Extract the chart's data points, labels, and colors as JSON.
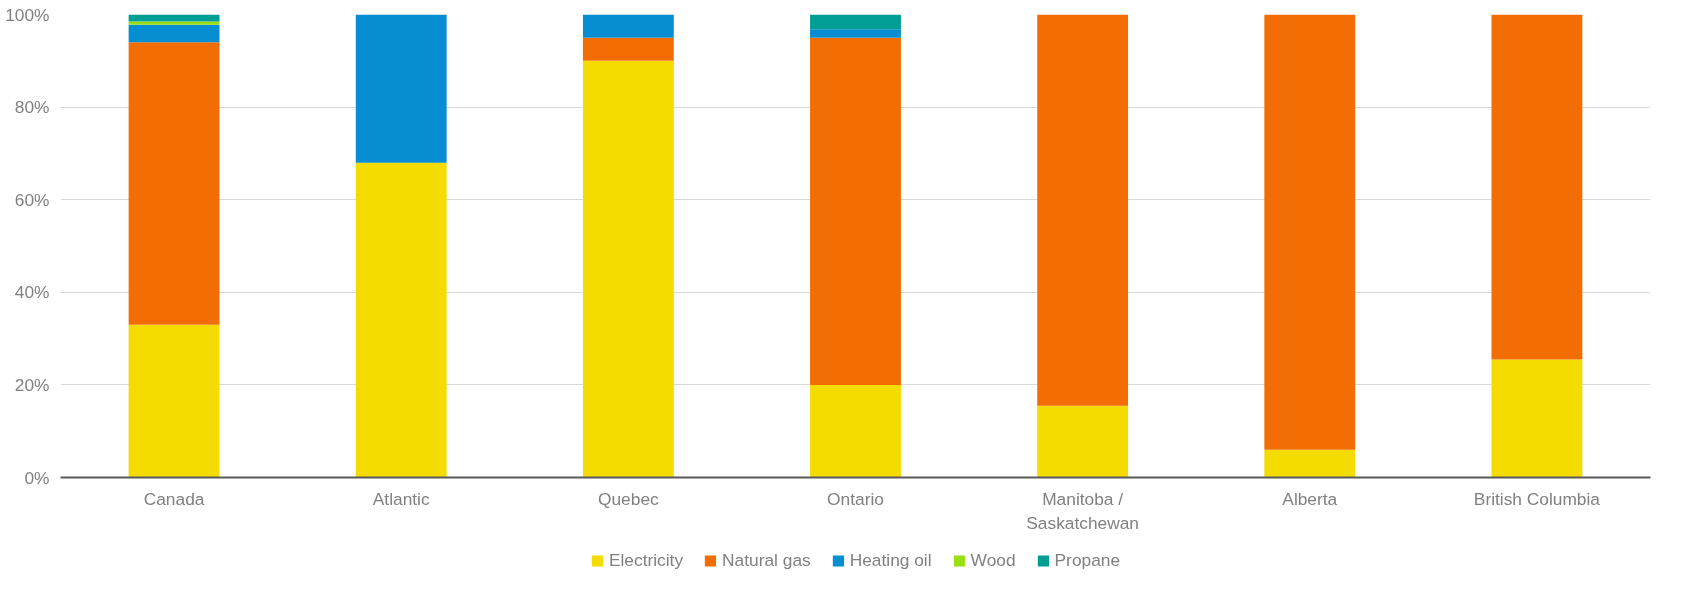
{
  "chart_data": {
    "type": "bar",
    "stacked": true,
    "categories": [
      "Canada",
      "Atlantic",
      "Quebec",
      "Ontario",
      "Manitoba / Saskatchewan",
      "Alberta",
      "British Columbia"
    ],
    "series": [
      {
        "name": "Electricity",
        "color": "#f5dc00",
        "values": [
          33,
          68,
          90,
          20,
          15.5,
          6,
          25.5
        ]
      },
      {
        "name": "Natural gas",
        "color": "#f26e04",
        "values": [
          61,
          0,
          5,
          75,
          84.5,
          94,
          74.5
        ]
      },
      {
        "name": "Heating oil",
        "color": "#078dd1",
        "values": [
          3.8,
          32,
          5,
          1.8,
          0,
          0,
          0
        ]
      },
      {
        "name": "Wood",
        "color": "#9ade14",
        "values": [
          0.7,
          0,
          0,
          0,
          0,
          0,
          0
        ]
      },
      {
        "name": "Propane",
        "color": "#009e94",
        "values": [
          1.5,
          0,
          0,
          3.2,
          0,
          0,
          0
        ]
      }
    ],
    "ylim": [
      0,
      100
    ],
    "yticks": [
      {
        "value": 0,
        "label": "0%"
      },
      {
        "value": 20,
        "label": "20%"
      },
      {
        "value": 40,
        "label": "40%"
      },
      {
        "value": 60,
        "label": "60%"
      },
      {
        "value": 80,
        "label": "80%"
      },
      {
        "value": 100,
        "label": "100%"
      }
    ],
    "grid": "y",
    "legend": "bottom"
  }
}
